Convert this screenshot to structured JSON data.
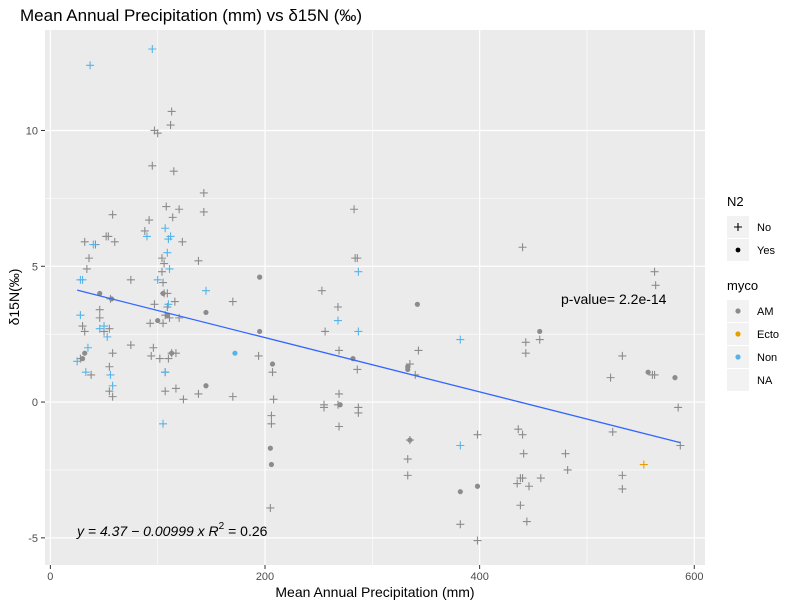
{
  "chart_data": {
    "type": "scatter",
    "title": "Mean Annual Precipitation (mm) vs  δ15N (‰)",
    "xlabel": "Mean Annual Precipitation (mm)",
    "ylabel": "δ15N(‰)",
    "xlim": [
      -5,
      610
    ],
    "ylim": [
      -6,
      13.7
    ],
    "x_ticks": [
      0,
      200,
      400,
      600
    ],
    "x_tick_labels": [
      "0",
      "200",
      "400",
      "600"
    ],
    "y_ticks": [
      -5,
      0,
      5,
      10
    ],
    "y_tick_labels": [
      "-5",
      "0",
      "5",
      "10"
    ],
    "grid": true,
    "legend_placement": "right",
    "colors": {
      "AM": "#8c8c8c",
      "Ecto": "#e69f00",
      "Non": "#56b4e9",
      "NA": "#8c8c8c",
      "fit": "#3366ff",
      "panel": "#ebebeb",
      "grid": "#ffffff"
    },
    "legends": [
      {
        "title": "N2",
        "entries": [
          {
            "label": "No",
            "shape": "plus"
          },
          {
            "label": "Yes",
            "shape": "dot"
          }
        ]
      },
      {
        "title": "myco",
        "entries": [
          {
            "label": "AM",
            "color_key": "AM"
          },
          {
            "label": "Ecto",
            "color_key": "Ecto"
          },
          {
            "label": "Non",
            "color_key": "Non"
          },
          {
            "label": "NA",
            "color_key": ""
          }
        ]
      }
    ],
    "fit_line": {
      "intercept": 4.37,
      "slope": -0.00999,
      "x_range": [
        25,
        587
      ]
    },
    "annotations": {
      "p_value": "p-value= 2.2e-14",
      "equation": "y = 4.37 − 0.00999 x   R",
      "r2_exp": "2",
      "r2_val": " = 0.26"
    },
    "series": [
      {
        "name": "No",
        "myco": "AM",
        "shape": "plus",
        "points": [
          [
            28,
            1.6
          ],
          [
            30,
            2.8
          ],
          [
            32,
            2.6
          ],
          [
            32,
            5.9
          ],
          [
            34,
            4.9
          ],
          [
            36,
            5.3
          ],
          [
            38,
            1.0
          ],
          [
            42,
            5.8
          ],
          [
            46,
            3.1
          ],
          [
            46,
            3.4
          ],
          [
            50,
            2.6
          ],
          [
            52,
            6.1
          ],
          [
            54,
            6.1
          ],
          [
            55,
            2.7
          ],
          [
            55,
            1.3
          ],
          [
            55,
            0.4
          ],
          [
            56,
            3.8
          ],
          [
            58,
            6.9
          ],
          [
            58,
            1.8
          ],
          [
            58,
            0.2
          ],
          [
            60,
            5.9
          ],
          [
            75,
            2.1
          ],
          [
            75,
            4.5
          ],
          [
            88,
            6.3
          ],
          [
            92,
            6.7
          ],
          [
            93,
            2.9
          ],
          [
            94,
            1.7
          ],
          [
            95,
            8.7
          ],
          [
            96,
            2.0
          ],
          [
            97,
            3.6
          ],
          [
            97,
            10.0
          ],
          [
            100,
            9.9
          ],
          [
            102,
            1.6
          ],
          [
            104,
            4.8
          ],
          [
            104,
            5.3
          ],
          [
            105,
            4.4
          ],
          [
            105,
            2.9
          ],
          [
            106,
            5.1
          ],
          [
            106,
            4.0
          ],
          [
            107,
            1.1
          ],
          [
            107,
            3.2
          ],
          [
            107,
            0.4
          ],
          [
            108,
            7.2
          ],
          [
            109,
            4.0
          ],
          [
            109,
            3.5
          ],
          [
            110,
            1.6
          ],
          [
            111,
            3.1
          ],
          [
            112,
            10.2
          ],
          [
            113,
            10.7
          ],
          [
            113,
            1.8
          ],
          [
            114,
            6.8
          ],
          [
            115,
            8.5
          ],
          [
            116,
            3.7
          ],
          [
            117,
            1.8
          ],
          [
            117,
            0.5
          ],
          [
            120,
            3.1
          ],
          [
            120,
            7.1
          ],
          [
            123,
            5.9
          ],
          [
            124,
            0.1
          ],
          [
            138,
            5.2
          ],
          [
            138,
            0.3
          ],
          [
            143,
            7.7
          ],
          [
            143,
            7.0
          ],
          [
            170,
            3.7
          ],
          [
            170,
            0.2
          ],
          [
            194,
            1.7
          ],
          [
            205,
            -3.9
          ],
          [
            206,
            -0.5
          ],
          [
            206,
            -0.8
          ],
          [
            207,
            1.1
          ],
          [
            208,
            0.1
          ],
          [
            253,
            4.1
          ],
          [
            255,
            -0.1
          ],
          [
            255,
            -0.2
          ],
          [
            256,
            2.6
          ],
          [
            268,
            3.5
          ],
          [
            268,
            -0.1
          ],
          [
            269,
            -0.9
          ],
          [
            269,
            1.9
          ],
          [
            269,
            0.3
          ],
          [
            283,
            7.1
          ],
          [
            284,
            5.3
          ],
          [
            286,
            5.3
          ],
          [
            286,
            1.2
          ],
          [
            287,
            -0.2
          ],
          [
            287,
            -0.4
          ],
          [
            333,
            -2.1
          ],
          [
            333,
            -2.7
          ],
          [
            335,
            1.4
          ],
          [
            335,
            -1.4
          ],
          [
            340,
            1.0
          ],
          [
            343,
            1.9
          ],
          [
            382,
            -4.5
          ],
          [
            398,
            -5.1
          ],
          [
            398,
            -1.2
          ],
          [
            435,
            -3.0
          ],
          [
            436,
            -1.0
          ],
          [
            438,
            -2.8
          ],
          [
            438,
            -3.8
          ],
          [
            440,
            5.7
          ],
          [
            440,
            -1.2
          ],
          [
            440,
            -2.8
          ],
          [
            441,
            -1.9
          ],
          [
            443,
            1.8
          ],
          [
            443,
            2.2
          ],
          [
            444,
            -4.4
          ],
          [
            446,
            -3.1
          ],
          [
            456,
            2.3
          ],
          [
            457,
            -2.8
          ],
          [
            480,
            -1.9
          ],
          [
            482,
            -2.5
          ],
          [
            522,
            0.9
          ],
          [
            524,
            -1.1
          ],
          [
            533,
            1.7
          ],
          [
            533,
            -2.7
          ],
          [
            533,
            -3.2
          ],
          [
            561,
            1.0
          ],
          [
            563,
            1.0
          ],
          [
            563,
            4.8
          ],
          [
            564,
            4.3
          ],
          [
            585,
            -0.2
          ],
          [
            587,
            -1.6
          ]
        ]
      },
      {
        "name": "Yes",
        "myco": "AM",
        "shape": "dot",
        "points": [
          [
            30,
            1.6
          ],
          [
            32,
            1.8
          ],
          [
            46,
            4.0
          ],
          [
            57,
            3.8
          ],
          [
            100,
            3.0
          ],
          [
            105,
            4.0
          ],
          [
            109,
            3.2
          ],
          [
            113,
            1.8
          ],
          [
            145,
            3.3
          ],
          [
            145,
            0.6
          ],
          [
            195,
            4.6
          ],
          [
            195,
            2.6
          ],
          [
            205,
            -1.7
          ],
          [
            206,
            -2.3
          ],
          [
            207,
            1.4
          ],
          [
            270,
            -0.1
          ],
          [
            282,
            1.6
          ],
          [
            333,
            1.3
          ],
          [
            333,
            1.2
          ],
          [
            335,
            -1.4
          ],
          [
            342,
            3.6
          ],
          [
            382,
            -3.3
          ],
          [
            398,
            -3.1
          ],
          [
            456,
            2.6
          ],
          [
            557,
            1.1
          ],
          [
            582,
            0.9
          ]
        ]
      },
      {
        "name": "No",
        "myco": "Non",
        "shape": "plus",
        "points": [
          [
            25,
            1.5
          ],
          [
            28,
            4.5
          ],
          [
            28,
            3.2
          ],
          [
            30,
            4.5
          ],
          [
            33,
            1.1
          ],
          [
            35,
            2.0
          ],
          [
            37,
            12.4
          ],
          [
            40,
            5.8
          ],
          [
            46,
            2.7
          ],
          [
            50,
            2.8
          ],
          [
            53,
            2.4
          ],
          [
            56,
            1.0
          ],
          [
            58,
            0.6
          ],
          [
            90,
            6.1
          ],
          [
            95,
            13.0
          ],
          [
            100,
            4.5
          ],
          [
            105,
            -0.8
          ],
          [
            107,
            6.4
          ],
          [
            107,
            1.1
          ],
          [
            109,
            5.5
          ],
          [
            110,
            6.0
          ],
          [
            110,
            3.6
          ],
          [
            111,
            4.9
          ],
          [
            112,
            6.1
          ],
          [
            145,
            4.1
          ],
          [
            268,
            3.0
          ],
          [
            287,
            4.8
          ],
          [
            287,
            2.6
          ],
          [
            382,
            2.3
          ],
          [
            382,
            -1.6
          ]
        ]
      },
      {
        "name": "Yes",
        "myco": "Non",
        "shape": "dot",
        "points": [
          [
            172,
            1.8
          ]
        ]
      },
      {
        "name": "No",
        "myco": "Ecto",
        "shape": "plus",
        "points": [
          [
            553,
            -2.3
          ]
        ]
      }
    ]
  }
}
